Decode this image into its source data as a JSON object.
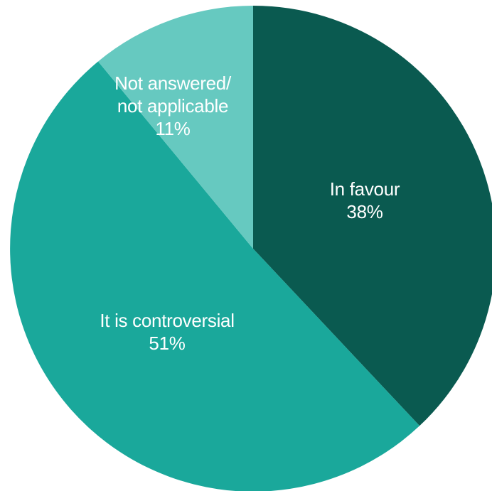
{
  "chart_data": {
    "type": "pie",
    "start_angle_deg": 0,
    "direction": "clockwise",
    "slices": [
      {
        "label": "In favour",
        "value": 38,
        "value_label": "38%",
        "color": "#0a5a50"
      },
      {
        "label": "It is controversial",
        "value": 51,
        "value_label": "51%",
        "color": "#1aa89b"
      },
      {
        "label": [
          "Not answered/",
          "not applicable"
        ],
        "value": 11,
        "value_label": "11%",
        "color": "#66c9c0"
      }
    ]
  }
}
